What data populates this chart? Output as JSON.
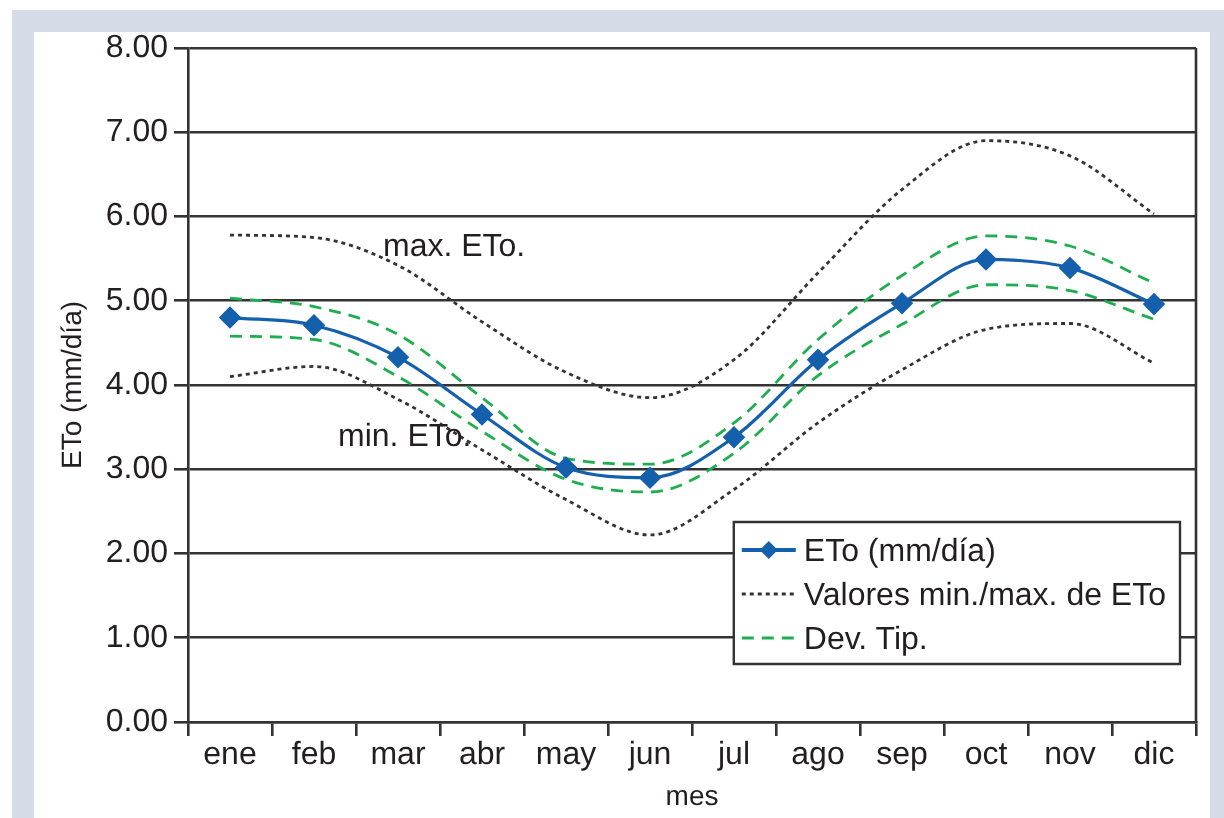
{
  "chart_data": {
    "type": "line",
    "xlabel": "mes",
    "ylabel": "ETo (mm/día)",
    "categories": [
      "ene",
      "feb",
      "mar",
      "abr",
      "may",
      "jun",
      "jul",
      "ago",
      "sep",
      "oct",
      "nov",
      "dic"
    ],
    "series": [
      {
        "name": "ETo (mm/día)",
        "color": "#1560ad",
        "marker": "diamond",
        "line_style": "solid",
        "values": [
          4.8,
          4.71,
          4.33,
          3.65,
          3.02,
          2.9,
          3.38,
          4.3,
          4.97,
          5.49,
          5.39,
          4.96
        ]
      },
      {
        "name": "Valores min./max. de ETo",
        "color": "#333333",
        "marker": "none",
        "line_style": "dotted",
        "values": [
          5.78,
          5.75,
          5.42,
          4.75,
          4.15,
          3.85,
          4.3,
          5.33,
          6.32,
          6.9,
          6.72,
          6.03
        ]
      },
      {
        "color": "#333333",
        "marker": "none",
        "line_style": "dotted",
        "values": [
          4.1,
          4.22,
          3.83,
          3.23,
          2.64,
          2.22,
          2.76,
          3.55,
          4.18,
          4.66,
          4.73,
          4.26
        ]
      },
      {
        "name": "Dev. Tip.",
        "color": "#1fae4f",
        "marker": "none",
        "line_style": "dashed",
        "values": [
          5.03,
          4.93,
          4.6,
          3.85,
          3.13,
          3.06,
          3.55,
          4.54,
          5.3,
          5.77,
          5.65,
          5.21
        ]
      },
      {
        "color": "#1fae4f",
        "marker": "none",
        "line_style": "dashed",
        "values": [
          4.58,
          4.54,
          4.1,
          3.45,
          2.88,
          2.73,
          3.19,
          4.11,
          4.72,
          5.19,
          5.12,
          4.78
        ]
      }
    ],
    "ylim": [
      0,
      8
    ],
    "yticks": [
      {
        "value": 0,
        "label": "0.00"
      },
      {
        "value": 1,
        "label": "1.00"
      },
      {
        "value": 2,
        "label": "2.00"
      },
      {
        "value": 3,
        "label": "3.00"
      },
      {
        "value": 4,
        "label": "4.00"
      },
      {
        "value": 5,
        "label": "5.00"
      },
      {
        "value": 6,
        "label": "6.00"
      },
      {
        "value": 7,
        "label": "7.00"
      },
      {
        "value": 8,
        "label": "8.00"
      }
    ],
    "grid": "y",
    "legend": "bottom right",
    "annotations": [
      "max. ETo.",
      "min. ETo."
    ]
  }
}
